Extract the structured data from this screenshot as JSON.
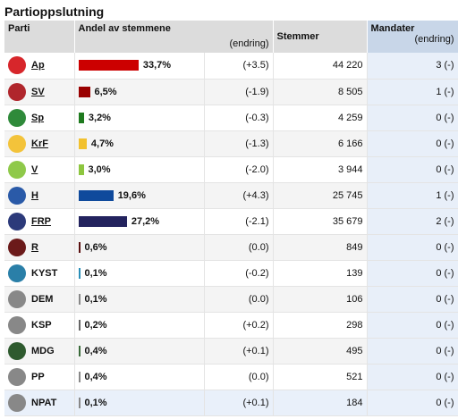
{
  "title": "Partioppslutning",
  "table": {
    "headers": {
      "party": "Parti",
      "share": "Andel av stemmene",
      "change": "(endring)",
      "votes": "Stemmer",
      "seats": "Mandater",
      "seats_change": "(endring)"
    },
    "rows": [
      {
        "party": "Ap",
        "linked": true,
        "icon_color": "#d7262b",
        "color": "#cc0000",
        "share": 33.7,
        "share_label": "33,7%",
        "change": "(+3.5)",
        "votes": "44 220",
        "seats": "3 (-)"
      },
      {
        "party": "SV",
        "linked": true,
        "icon_color": "#b0262c",
        "color": "#990000",
        "share": 6.5,
        "share_label": "6,5%",
        "change": "(-1.9)",
        "votes": "8 505",
        "seats": "1 (-)"
      },
      {
        "party": "Sp",
        "linked": true,
        "icon_color": "#2f8a3a",
        "color": "#1e7a1e",
        "share": 3.2,
        "share_label": "3,2%",
        "change": "(-0.3)",
        "votes": "4 259",
        "seats": "0 (-)"
      },
      {
        "party": "KrF",
        "linked": true,
        "icon_color": "#f3c33a",
        "color": "#f2c12e",
        "share": 4.7,
        "share_label": "4,7%",
        "change": "(-1.3)",
        "votes": "6 166",
        "seats": "0 (-)"
      },
      {
        "party": "V",
        "linked": true,
        "icon_color": "#8fc94a",
        "color": "#8dc63f",
        "share": 3.0,
        "share_label": "3,0%",
        "change": "(-2.0)",
        "votes": "3 944",
        "seats": "0 (-)"
      },
      {
        "party": "H",
        "linked": true,
        "icon_color": "#2a5aa8",
        "color": "#0f4a9c",
        "share": 19.6,
        "share_label": "19,6%",
        "change": "(+4.3)",
        "votes": "25 745",
        "seats": "1 (-)"
      },
      {
        "party": "FRP",
        "linked": true,
        "icon_color": "#2c3a7a",
        "color": "#23235e",
        "share": 27.2,
        "share_label": "27,2%",
        "change": "(-2.1)",
        "votes": "35 679",
        "seats": "2 (-)"
      },
      {
        "party": "R",
        "linked": true,
        "icon_color": "#6b1a1a",
        "color": "#5a1010",
        "share": 0.6,
        "share_label": "0,6%",
        "change": "(0.0)",
        "votes": "849",
        "seats": "0 (-)"
      },
      {
        "party": "KYST",
        "linked": false,
        "icon_color": "#2a7fa8",
        "color": "#2a8fb8",
        "share": 0.1,
        "share_label": "0,1%",
        "change": "(-0.2)",
        "votes": "139",
        "seats": "0 (-)"
      },
      {
        "party": "DEM",
        "linked": false,
        "icon_color": "#888888",
        "color": "#888888",
        "share": 0.1,
        "share_label": "0,1%",
        "change": "(0.0)",
        "votes": "106",
        "seats": "0 (-)"
      },
      {
        "party": "KSP",
        "linked": false,
        "icon_color": "#888888",
        "color": "#666666",
        "share": 0.2,
        "share_label": "0,2%",
        "change": "(+0.2)",
        "votes": "298",
        "seats": "0 (-)"
      },
      {
        "party": "MDG",
        "linked": false,
        "icon_color": "#2e5a2e",
        "color": "#3a6a3a",
        "share": 0.4,
        "share_label": "0,4%",
        "change": "(+0.1)",
        "votes": "495",
        "seats": "0 (-)"
      },
      {
        "party": "PP",
        "linked": false,
        "icon_color": "#888888",
        "color": "#888888",
        "share": 0.4,
        "share_label": "0,4%",
        "change": "(0.0)",
        "votes": "521",
        "seats": "0 (-)"
      },
      {
        "party": "NPAT",
        "linked": false,
        "icon_color": "#888888",
        "color": "#888888",
        "share": 0.1,
        "share_label": "0,1%",
        "change": "(+0.1)",
        "votes": "184",
        "seats": "0 (-)"
      }
    ]
  }
}
